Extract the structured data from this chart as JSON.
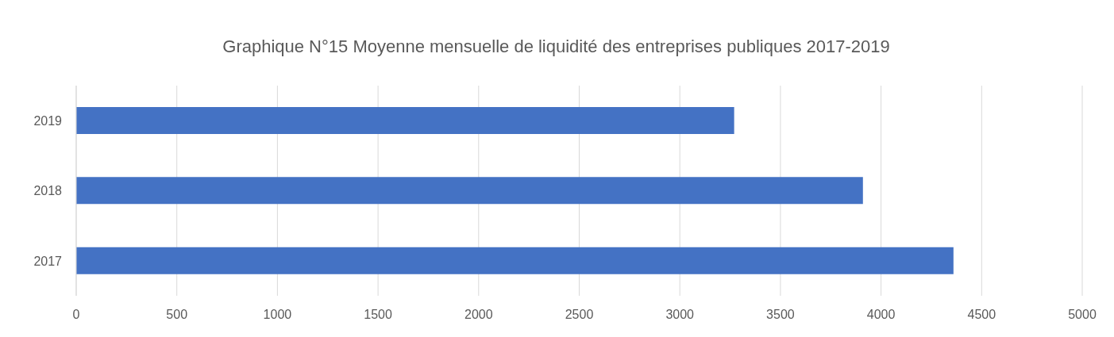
{
  "chart_data": {
    "type": "bar",
    "orientation": "horizontal",
    "title": "Graphique N°15 Moyenne mensuelle de liquidité des entreprises publiques 2017-2019",
    "categories": [
      "2019",
      "2018",
      "2017"
    ],
    "values": [
      3270,
      3910,
      4360
    ],
    "color": "#4472c4",
    "xlim": [
      0,
      5000
    ],
    "xticks": [
      0,
      500,
      1000,
      1500,
      2000,
      2500,
      3000,
      3500,
      4000,
      4500,
      5000
    ],
    "grid": "x"
  }
}
